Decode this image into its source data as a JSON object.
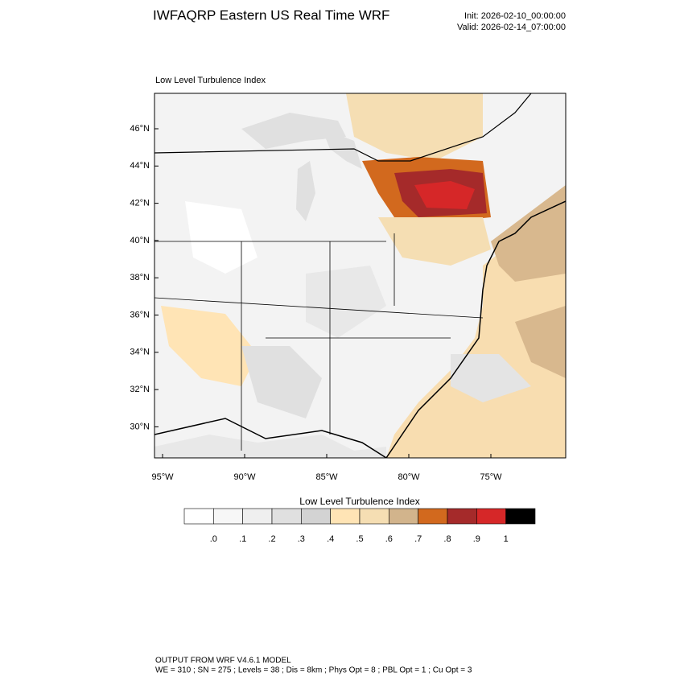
{
  "header": {
    "title": "IWFAQRP Eastern US Real Time WRF",
    "init": "Init: 2026-02-10_00:00:00",
    "valid": "Valid: 2026-02-14_07:00:00"
  },
  "map": {
    "title": "Low Level Turbulence Index",
    "lat_labels": [
      "46°N",
      "44°N",
      "42°N",
      "40°N",
      "38°N",
      "36°N",
      "34°N",
      "32°N",
      "30°N"
    ],
    "lon_labels": [
      "95°W",
      "90°W",
      "85°W",
      "80°W",
      "75°W"
    ]
  },
  "colorbar": {
    "title": "Low Level Turbulence Index",
    "colors": [
      "#ffffff",
      "#f7f7f7",
      "#efefef",
      "#e0e0e0",
      "#d3d3d3",
      "#ffe4b5",
      "#f5deb3",
      "#d2b48c",
      "#d2691e",
      "#a52a2a",
      "#d62728",
      "#000000"
    ],
    "labels": [
      ".0",
      ".1",
      ".2",
      ".3",
      ".4",
      ".5",
      ".6",
      ".7",
      ".8",
      ".9",
      "1"
    ]
  },
  "footer": {
    "line1": "OUTPUT FROM WRF V4.6.1 MODEL",
    "line2": "WE = 310 ; SN = 275 ; Levels = 38 ; Dis = 8km ; Phys Opt = 8 ; PBL Opt = 1 ; Cu Opt = 3"
  }
}
